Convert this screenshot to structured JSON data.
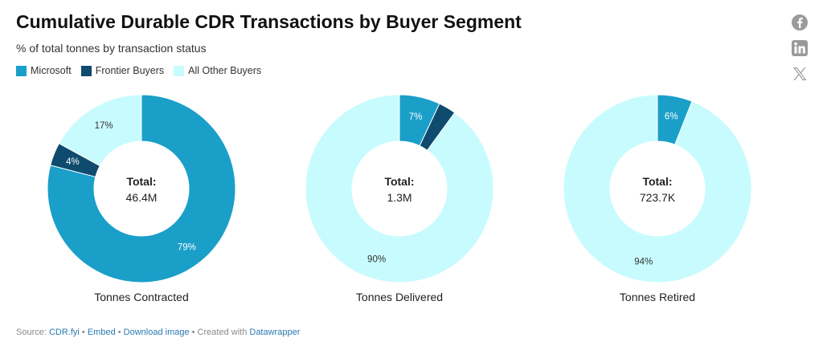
{
  "header": {
    "title": "Cumulative Durable CDR Transactions by Buyer Segment",
    "subtitle": "% of total tonnes by transaction status"
  },
  "legend": [
    {
      "label": "Microsoft",
      "color": "#1a9fc9"
    },
    {
      "label": "Frontier Buyers",
      "color": "#0e4b6e"
    },
    {
      "label": "All Other Buyers",
      "color": "#c8fbfd"
    }
  ],
  "social": [
    {
      "name": "facebook-icon"
    },
    {
      "name": "linkedin-icon"
    },
    {
      "name": "x-icon"
    }
  ],
  "chart_data": [
    {
      "type": "pie",
      "title": "Tonnes Contracted",
      "center_label": "Total:",
      "center_value": "46.4M",
      "categories": [
        "Microsoft",
        "Frontier Buyers",
        "All Other Buyers"
      ],
      "values": [
        79,
        4,
        17
      ],
      "labels": [
        "79%",
        "4%",
        "17%"
      ],
      "colors": [
        "#1a9fc9",
        "#0e4b6e",
        "#c8fbfd"
      ]
    },
    {
      "type": "pie",
      "title": "Tonnes Delivered",
      "center_label": "Total:",
      "center_value": "1.3M",
      "categories": [
        "Microsoft",
        "Frontier Buyers",
        "All Other Buyers"
      ],
      "values": [
        7,
        3,
        90
      ],
      "labels": [
        "7%",
        "",
        "90%"
      ],
      "colors": [
        "#1a9fc9",
        "#0e4b6e",
        "#c8fbfd"
      ]
    },
    {
      "type": "pie",
      "title": "Tonnes Retired",
      "center_label": "Total:",
      "center_value": "723.7K",
      "categories": [
        "Microsoft",
        "Frontier Buyers",
        "All Other Buyers"
      ],
      "values": [
        6,
        0,
        94
      ],
      "labels": [
        "6%",
        "",
        "94%"
      ],
      "colors": [
        "#1a9fc9",
        "#0e4b6e",
        "#c8fbfd"
      ]
    }
  ],
  "footer": {
    "source_prefix": "Source: ",
    "source_link": "CDR.fyi",
    "sep1": " • ",
    "embed": "Embed",
    "sep2": " • ",
    "download": "Download image",
    "created_with": " • Created with ",
    "tool": "Datawrapper"
  }
}
